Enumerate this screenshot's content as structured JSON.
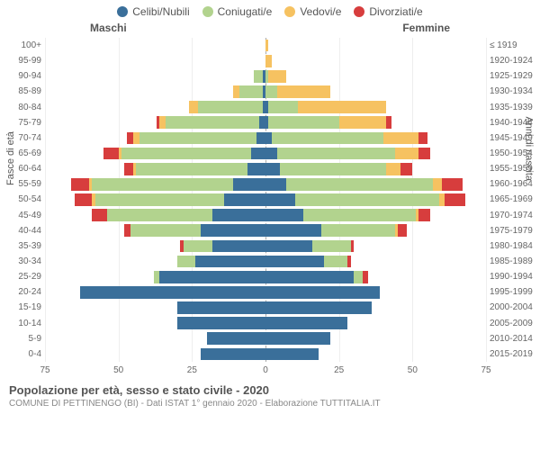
{
  "legend": [
    {
      "label": "Celibi/Nubili",
      "color": "#3a6f9a"
    },
    {
      "label": "Coniugati/e",
      "color": "#b2d38e"
    },
    {
      "label": "Vedovi/e",
      "color": "#f6c261"
    },
    {
      "label": "Divorziati/e",
      "color": "#d73d3d"
    }
  ],
  "headers": {
    "left": "Maschi",
    "right": "Femmine"
  },
  "axis_titles": {
    "left": "Fasce di età",
    "right": "Anni di nascita"
  },
  "x_axis": {
    "max": 75,
    "ticks": [
      75,
      50,
      25,
      0,
      25,
      50,
      75
    ]
  },
  "colors": {
    "celibi": "#3a6f9a",
    "coniugati": "#b2d38e",
    "vedovi": "#f6c261",
    "divorziati": "#d73d3d",
    "grid": "#eeeeee",
    "center": "#aaaaaa",
    "bg": "#ffffff"
  },
  "rows": [
    {
      "age": "100+",
      "birth": "≤ 1919",
      "m": [
        0,
        0,
        0,
        0
      ],
      "f": [
        0,
        0,
        1,
        0
      ]
    },
    {
      "age": "95-99",
      "birth": "1920-1924",
      "m": [
        0,
        0,
        0,
        0
      ],
      "f": [
        0,
        0,
        2,
        0
      ]
    },
    {
      "age": "90-94",
      "birth": "1925-1929",
      "m": [
        1,
        3,
        0,
        0
      ],
      "f": [
        0,
        1,
        6,
        0
      ]
    },
    {
      "age": "85-89",
      "birth": "1930-1934",
      "m": [
        1,
        8,
        2,
        0
      ],
      "f": [
        0,
        4,
        18,
        0
      ]
    },
    {
      "age": "80-84",
      "birth": "1935-1939",
      "m": [
        1,
        22,
        3,
        0
      ],
      "f": [
        1,
        10,
        30,
        0
      ]
    },
    {
      "age": "75-79",
      "birth": "1940-1944",
      "m": [
        2,
        32,
        2,
        1
      ],
      "f": [
        1,
        24,
        16,
        2
      ]
    },
    {
      "age": "70-74",
      "birth": "1945-1949",
      "m": [
        3,
        40,
        2,
        2
      ],
      "f": [
        2,
        38,
        12,
        3
      ]
    },
    {
      "age": "65-69",
      "birth": "1950-1954",
      "m": [
        5,
        44,
        1,
        5
      ],
      "f": [
        4,
        40,
        8,
        4
      ]
    },
    {
      "age": "60-64",
      "birth": "1955-1959",
      "m": [
        6,
        38,
        1,
        3
      ],
      "f": [
        5,
        36,
        5,
        4
      ]
    },
    {
      "age": "55-59",
      "birth": "1960-1964",
      "m": [
        11,
        48,
        1,
        6
      ],
      "f": [
        7,
        50,
        3,
        7
      ]
    },
    {
      "age": "50-54",
      "birth": "1965-1969",
      "m": [
        14,
        44,
        1,
        6
      ],
      "f": [
        10,
        49,
        2,
        7
      ]
    },
    {
      "age": "45-49",
      "birth": "1970-1974",
      "m": [
        18,
        36,
        0,
        5
      ],
      "f": [
        13,
        38,
        1,
        4
      ]
    },
    {
      "age": "40-44",
      "birth": "1975-1979",
      "m": [
        22,
        24,
        0,
        2
      ],
      "f": [
        19,
        25,
        1,
        3
      ]
    },
    {
      "age": "35-39",
      "birth": "1980-1984",
      "m": [
        18,
        10,
        0,
        1
      ],
      "f": [
        16,
        13,
        0,
        1
      ]
    },
    {
      "age": "30-34",
      "birth": "1985-1989",
      "m": [
        24,
        6,
        0,
        0
      ],
      "f": [
        20,
        8,
        0,
        1
      ]
    },
    {
      "age": "25-29",
      "birth": "1990-1994",
      "m": [
        36,
        2,
        0,
        0
      ],
      "f": [
        30,
        3,
        0,
        2
      ]
    },
    {
      "age": "20-24",
      "birth": "1995-1999",
      "m": [
        63,
        0,
        0,
        0
      ],
      "f": [
        39,
        0,
        0,
        0
      ]
    },
    {
      "age": "15-19",
      "birth": "2000-2004",
      "m": [
        30,
        0,
        0,
        0
      ],
      "f": [
        36,
        0,
        0,
        0
      ]
    },
    {
      "age": "10-14",
      "birth": "2005-2009",
      "m": [
        30,
        0,
        0,
        0
      ],
      "f": [
        28,
        0,
        0,
        0
      ]
    },
    {
      "age": "5-9",
      "birth": "2010-2014",
      "m": [
        20,
        0,
        0,
        0
      ],
      "f": [
        22,
        0,
        0,
        0
      ]
    },
    {
      "age": "0-4",
      "birth": "2015-2019",
      "m": [
        22,
        0,
        0,
        0
      ],
      "f": [
        18,
        0,
        0,
        0
      ]
    }
  ],
  "footer": {
    "title": "Popolazione per età, sesso e stato civile - 2020",
    "subtitle": "COMUNE DI PETTINENGO (BI) - Dati ISTAT 1° gennaio 2020 - Elaborazione TUTTITALIA.IT"
  }
}
